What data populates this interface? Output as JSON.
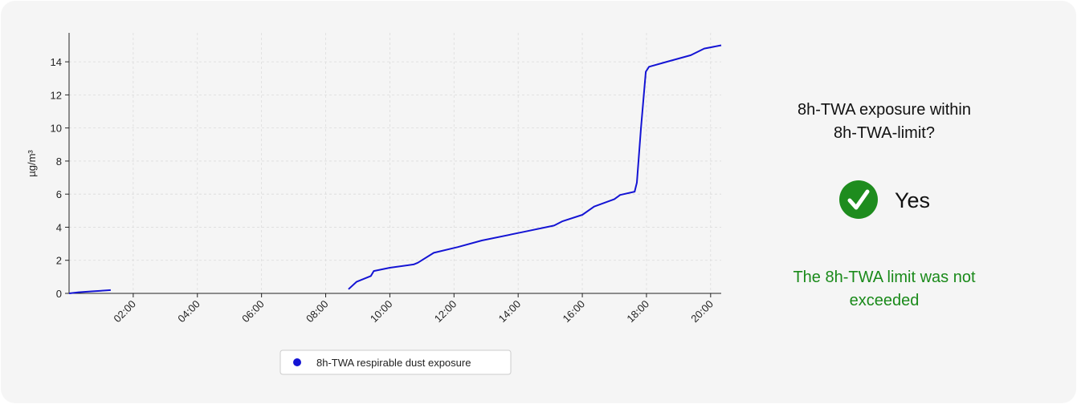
{
  "chart_data": {
    "type": "line",
    "ylabel": "µg/m³",
    "x": [
      0,
      0.3,
      0.7,
      1.0,
      1.3,
      5,
      8.71,
      8.96,
      9.41,
      9.5,
      10.0,
      10.74,
      10.87,
      11.37,
      12.12,
      12.87,
      14.12,
      15.12,
      15.37,
      16.0,
      16.37,
      17.0,
      17.18,
      17.63,
      17.7,
      17.83,
      17.98,
      18.08,
      18.63,
      19.38,
      19.8,
      20.33
    ],
    "series": [
      {
        "name": "8h-TWA respirable dust exposure",
        "color": "#1414d4",
        "values": [
          0,
          0.07,
          0.12,
          0.16,
          0.2,
          null,
          0.25,
          0.7,
          1.05,
          1.35,
          1.55,
          1.75,
          1.85,
          2.45,
          2.8,
          3.2,
          3.7,
          4.1,
          4.35,
          4.75,
          5.25,
          5.7,
          5.95,
          6.15,
          6.7,
          10,
          13.4,
          13.7,
          14.0,
          14.4,
          14.8,
          15.0
        ]
      }
    ],
    "xlim": [
      0,
      20.33
    ],
    "xticks": [
      {
        "value": 2,
        "label": "02:00"
      },
      {
        "value": 4,
        "label": "04:00"
      },
      {
        "value": 6,
        "label": "06:00"
      },
      {
        "value": 8,
        "label": "08:00"
      },
      {
        "value": 10,
        "label": "10:00"
      },
      {
        "value": 12,
        "label": "12:00"
      },
      {
        "value": 14,
        "label": "14:00"
      },
      {
        "value": 16,
        "label": "16:00"
      },
      {
        "value": 18,
        "label": "18:00"
      },
      {
        "value": 20,
        "label": "20:00"
      }
    ],
    "ylim": [
      0,
      15.75
    ],
    "yticks": [
      0,
      2,
      4,
      6,
      8,
      10,
      12,
      14
    ],
    "grid": true,
    "legend": "bottom"
  },
  "status": {
    "question": [
      "8h-TWA exposure within",
      "8h-TWA-limit?"
    ],
    "answer": "Yes",
    "message": [
      "The 8h-TWA limit was not",
      "exceeded"
    ]
  }
}
